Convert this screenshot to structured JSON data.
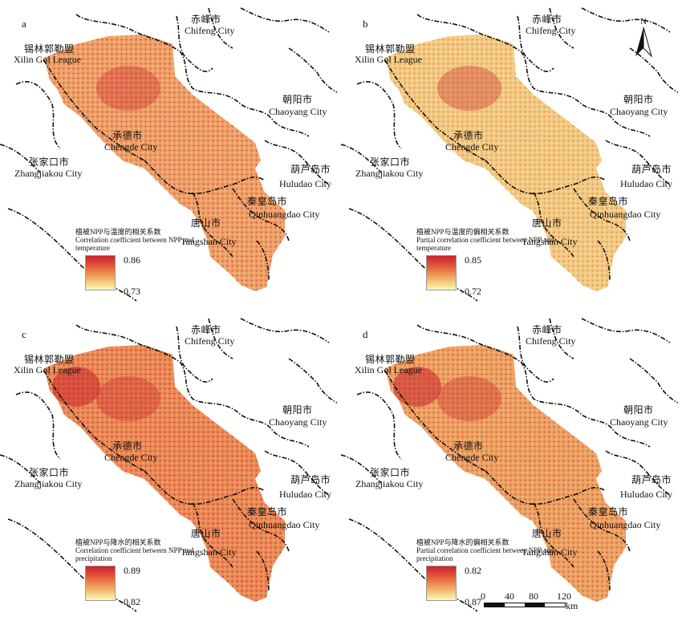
{
  "panels": [
    {
      "letter": "a",
      "labels": {
        "xilin_cn": "锡林郭勒盟",
        "xilin_en": "Xilin Gol League",
        "chifeng_cn": "赤峰市",
        "chifeng_en": "Chifeng City",
        "chaoyang_cn": "朝阳市",
        "chaoyang_en": "Chaoyang City",
        "chengde_cn": "承德市",
        "chengde_en": "Chengde City",
        "zhangjiakou_cn": "张家口市",
        "zhangjiakou_en": "Zhangjiakou City",
        "huludao_cn": "葫芦岛市",
        "huludao_en": "Huludao City",
        "qinhuangdao_cn": "秦皇岛市",
        "qinhuangdao_en": "Qinhuangdao City",
        "tangshan_cn": "唐山市",
        "tangshan_en": "Tangshan City"
      },
      "legend": {
        "title_cn": "植被NPP与温度的相关系数",
        "title_en": "Correlation coefficient between NPP and temperature",
        "max": "0.86",
        "min": "-0.73"
      }
    },
    {
      "letter": "b",
      "labels": {
        "xilin_cn": "锡林郭勒盟",
        "xilin_en": "Xilin Gol League",
        "chifeng_cn": "赤峰市",
        "chifeng_en": "Chifeng City",
        "chaoyang_cn": "朝阳市",
        "chaoyang_en": "Chaoyang City",
        "chengde_cn": "承德市",
        "chengde_en": "Chengde City",
        "zhangjiakou_cn": "张家口市",
        "zhangjiakou_en": "Zhangjiakou City",
        "huludao_cn": "葫芦岛市",
        "huludao_en": "Huludao City",
        "qinhuangdao_cn": "秦皇岛市",
        "qinhuangdao_en": "Qinhuangdao City",
        "tangshan_cn": "唐山市",
        "tangshan_en": "Tangshan City"
      },
      "legend": {
        "title_cn": "植被NPP与温度的偏相关系数",
        "title_en": "Partial correlation coefficient between NPP and temperature",
        "max": "0.85",
        "min": "-0.72"
      },
      "north_label": "N"
    },
    {
      "letter": "c",
      "labels": {
        "xilin_cn": "锡林郭勒盟",
        "xilin_en": "Xilin Gol League",
        "chifeng_cn": "赤峰市",
        "chifeng_en": "Chifeng City",
        "chaoyang_cn": "朝阳市",
        "chaoyang_en": "Chaoyang City",
        "chengde_cn": "承德市",
        "chengde_en": "Chengde City",
        "zhangjiakou_cn": "张家口市",
        "zhangjiakou_en": "Zhangjiakou City",
        "huludao_cn": "葫芦岛市",
        "huludao_en": "Huludao City",
        "qinhuangdao_cn": "秦皇岛市",
        "qinhuangdao_en": "Qinhuangdao City",
        "tangshan_cn": "唐山市",
        "tangshan_en": "Tangshan City"
      },
      "legend": {
        "title_cn": "植被NPP与降水的相关系数",
        "title_en": "Correlation coefficient between NPP and precipitation",
        "max": "0.89",
        "min": "-0.82"
      }
    },
    {
      "letter": "d",
      "labels": {
        "xilin_cn": "锡林郭勒盟",
        "xilin_en": "Xilin Gol League",
        "chifeng_cn": "赤峰市",
        "chifeng_en": "Chifeng City",
        "chaoyang_cn": "朝阳市",
        "chaoyang_en": "Chaoyang City",
        "chengde_cn": "承德市",
        "chengde_en": "Chengde City",
        "zhangjiakou_cn": "张家口市",
        "zhangjiakou_en": "Zhangjiakou City",
        "huludao_cn": "葫芦岛市",
        "huludao_en": "Huludao City",
        "qinhuangdao_cn": "秦皇岛市",
        "qinhuangdao_en": "Qinhuangdao City",
        "tangshan_cn": "唐山市",
        "tangshan_en": "Tangshan City"
      },
      "legend": {
        "title_cn": "植被NPP与降水的偏相关系数",
        "title_en": "Partial correlation coefficient between NPP and precipitation",
        "max": "0.82",
        "min": "-0.87"
      },
      "scale": {
        "ticks": [
          "0",
          "40",
          "80",
          "120"
        ],
        "unit": "km"
      }
    }
  ],
  "colors": {
    "high": "#c8232a",
    "mid": "#ef9a56",
    "low": "#fbf7c4",
    "boundary": "#111111"
  }
}
